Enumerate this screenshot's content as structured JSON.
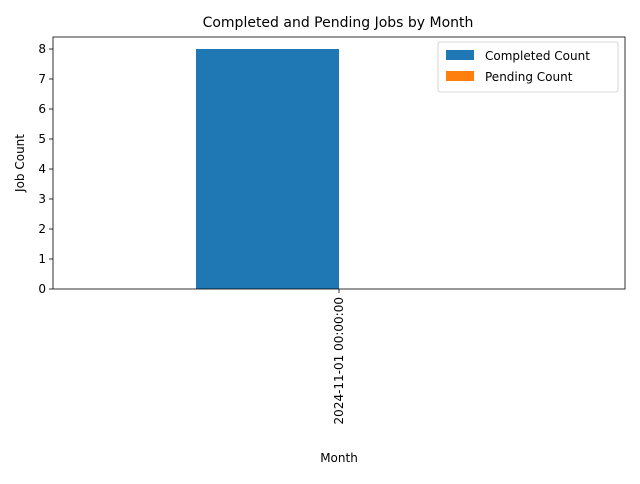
{
  "chart_data": {
    "type": "bar",
    "title": "Completed and Pending Jobs by Month",
    "xlabel": "Month",
    "ylabel": "Job Count",
    "categories": [
      "2024-11-01 00:00:00"
    ],
    "series": [
      {
        "name": "Completed Count",
        "values": [
          8
        ],
        "color": "#1f77b4"
      },
      {
        "name": "Pending Count",
        "values": [
          0
        ],
        "color": "#ff7f0e"
      }
    ],
    "ylim": [
      0,
      8.4
    ],
    "yticks": [
      0,
      1,
      2,
      3,
      4,
      5,
      6,
      7,
      8
    ],
    "grid": false,
    "legend_position": "top-right"
  }
}
